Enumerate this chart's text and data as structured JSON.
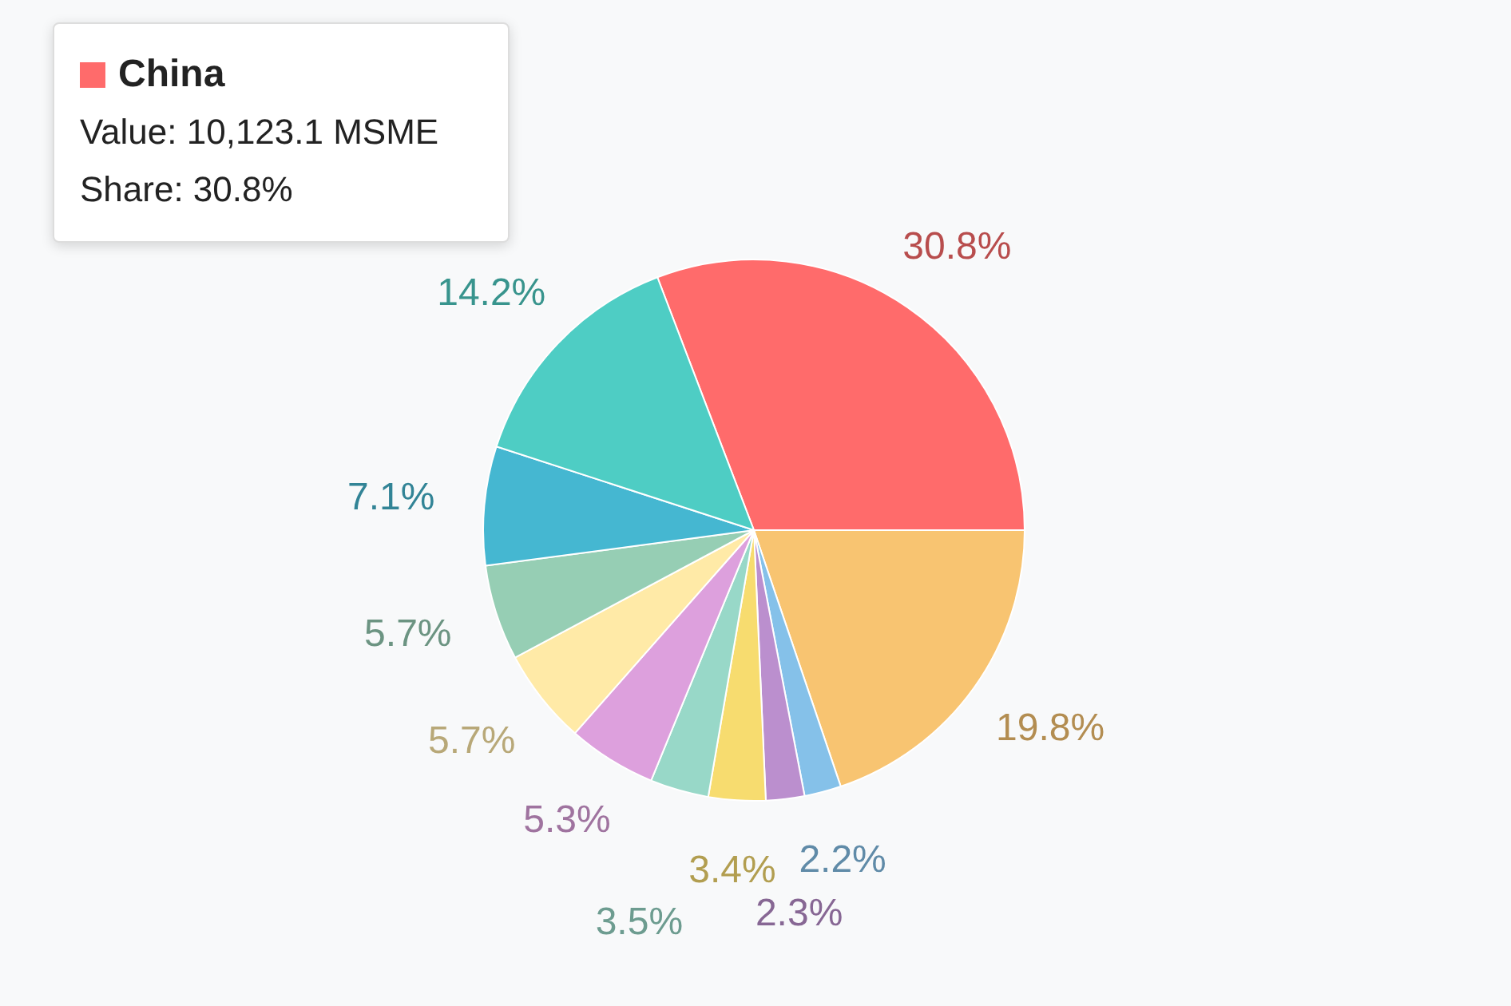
{
  "chart_data": {
    "type": "pie",
    "categories": [
      "China",
      null,
      null,
      null,
      null,
      null,
      null,
      null,
      null,
      null,
      null
    ],
    "values": [
      30.8,
      19.8,
      2.2,
      2.3,
      3.4,
      3.5,
      5.3,
      5.7,
      5.7,
      7.1,
      14.2
    ],
    "colors": [
      "#ff6b6b",
      "#f8c471",
      "#85c1e9",
      "#bb8fce",
      "#f7dc6f",
      "#98d8c8",
      "#dda0dd",
      "#ffeaa7",
      "#96ceb4",
      "#45b7d1",
      "#4ecdc4"
    ],
    "value_labels": [
      "30.8%",
      "19.8%",
      "2.2%",
      "2.3%",
      "3.4%",
      "3.5%",
      "5.3%",
      "5.7%",
      "5.7%",
      "7.1%",
      "14.2%"
    ],
    "annotations": [
      "Value: 10,123.1 MSME",
      "Share: 30.8%"
    ],
    "legend": "top left"
  }
}
